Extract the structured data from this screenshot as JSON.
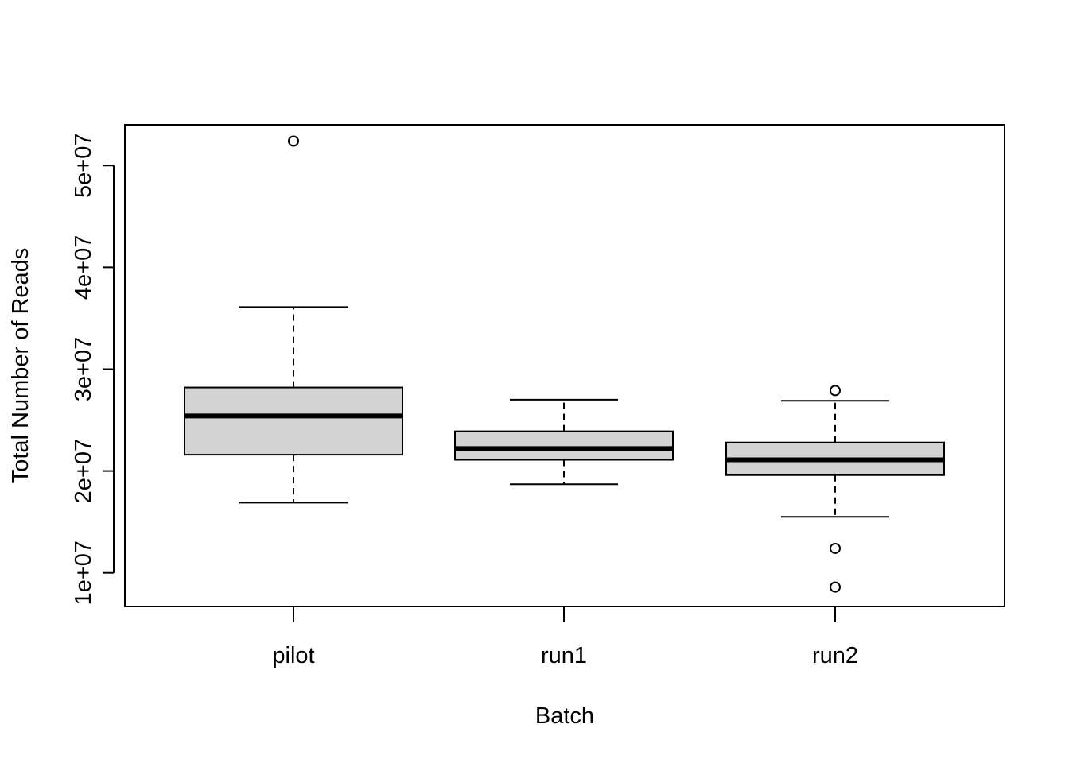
{
  "chart_data": {
    "type": "boxplot",
    "title": "",
    "xlabel": "Batch",
    "ylabel": "Total Number of Reads",
    "ylim": [
      6700000,
      54000000
    ],
    "y_ticks": [
      10000000,
      20000000,
      30000000,
      40000000,
      50000000
    ],
    "y_tick_labels": [
      "1e+07",
      "2e+07",
      "3e+07",
      "4e+07",
      "5e+07"
    ],
    "categories": [
      "pilot",
      "run1",
      "run2"
    ],
    "box_fill": "#d3d3d3",
    "grid": false,
    "series": [
      {
        "category": "pilot",
        "whisker_low": 16900000,
        "q1": 21600000,
        "median": 25400000,
        "q3": 28200000,
        "whisker_high": 36100000,
        "outliers": [
          52400000
        ]
      },
      {
        "category": "run1",
        "whisker_low": 18700000,
        "q1": 21100000,
        "median": 22200000,
        "q3": 23900000,
        "whisker_high": 27000000,
        "outliers": []
      },
      {
        "category": "run2",
        "whisker_low": 15500000,
        "q1": 19600000,
        "median": 21100000,
        "q3": 22800000,
        "whisker_high": 26900000,
        "outliers": [
          27900000,
          12400000,
          8600000
        ]
      }
    ]
  }
}
